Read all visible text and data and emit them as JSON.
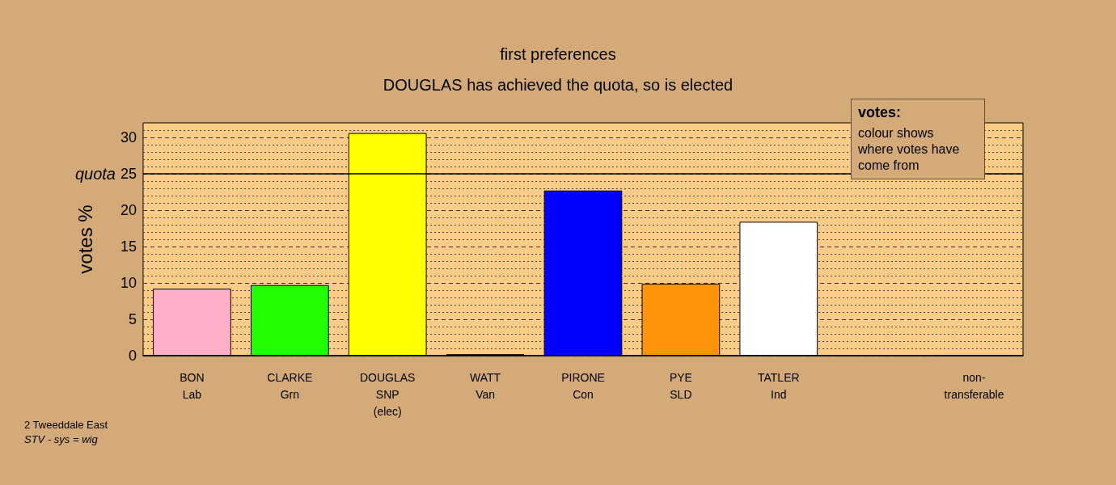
{
  "chart_data": {
    "type": "bar",
    "title": "first preferences",
    "subtitle": "DOUGLAS has achieved the quota, so is elected",
    "ylabel": "votes %",
    "categories": [
      "BON\nLab",
      "CLARKE\nGrn",
      "DOUGLAS\nSNP\n(elec)",
      "WATT\nVan",
      "PIRONE\nCon",
      "PYE\nSLD",
      "TATLER\nInd",
      null,
      "non-\ntransferable"
    ],
    "values": [
      9.2,
      9.7,
      30.6,
      0.2,
      22.7,
      9.9,
      18.4,
      null,
      0
    ],
    "colors": [
      "#ffb0c8",
      "#22ff00",
      "#ffff00",
      "#330066",
      "#0000ff",
      "#ff9409",
      "#ffffff",
      "#808080",
      "#000000"
    ],
    "ylim": [
      0,
      32
    ],
    "yticks": [
      0,
      5,
      10,
      15,
      20,
      25,
      30
    ],
    "grid": "y",
    "ref_lines": [
      {
        "axis": "y",
        "value": 25,
        "label": "quota",
        "color": "#000000",
        "line_style": "solid"
      }
    ],
    "annotations": [
      "votes:",
      "colour shows where votes have come from",
      "2 Tweeddale East",
      "STV - sys = wig"
    ]
  }
}
